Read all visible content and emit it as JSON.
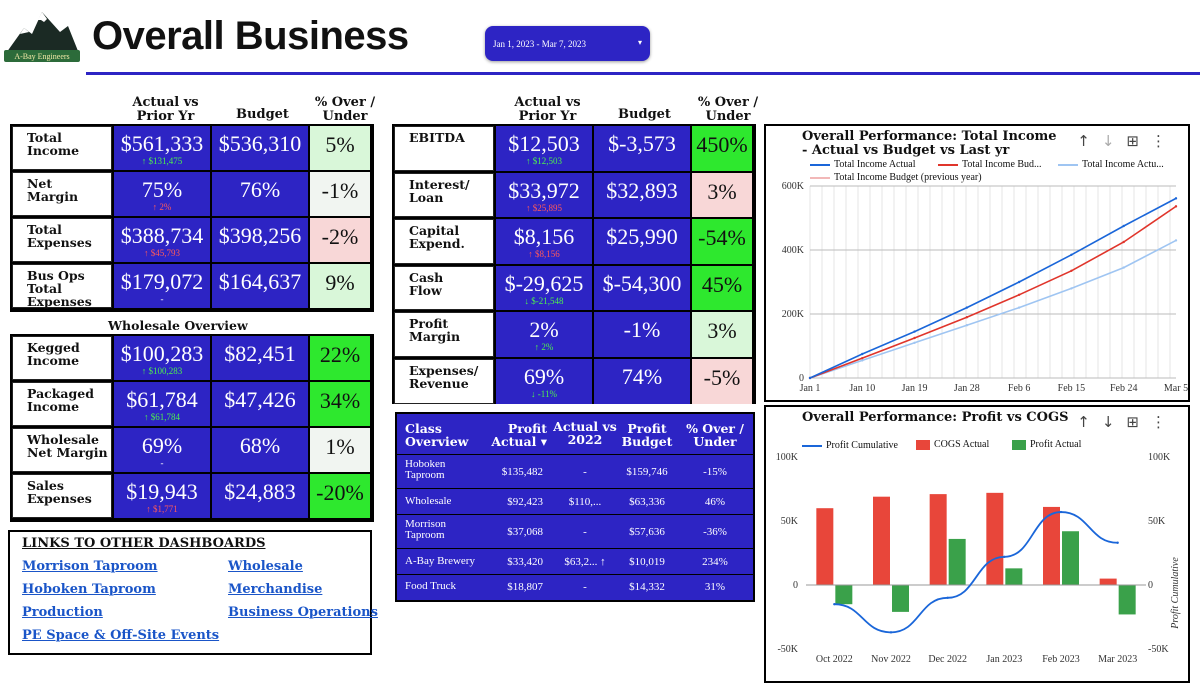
{
  "header": {
    "logo_text": "A-Bay Engineers",
    "title": "Overall Business",
    "date_range": "Jan 1, 2023 - Mar 7, 2023"
  },
  "left_cols": {
    "c1": "Actual vs\nPrior Yr",
    "c2": "Budget",
    "c3": "% Over /\nUnder"
  },
  "mid_cols": {
    "c1": "Actual vs\nPrior Yr",
    "c2": "Budget",
    "c3": "% Over /\nUnder"
  },
  "left_rows": [
    {
      "label": "Total\nIncome",
      "actual": "$561,333",
      "delta": "↑ $131,475",
      "dir": "up",
      "budget": "$536,310",
      "pct": "5%",
      "tone": "pg"
    },
    {
      "label": "Net\nMargin",
      "actual": "75%",
      "delta": "↑ 2%",
      "dir": "down",
      "budget": "76%",
      "pct": "-1%",
      "tone": "pw"
    },
    {
      "label": "Total\nExpenses",
      "actual": "$388,734",
      "delta": "↑ $45,793",
      "dir": "down",
      "budget": "$398,256",
      "pct": "-2%",
      "tone": "pr"
    },
    {
      "label": "Bus Ops\nTotal\nExpenses",
      "actual": "$179,072",
      "delta": "-",
      "dir": "dash",
      "budget": "$164,637",
      "pct": "9%",
      "tone": "pg"
    }
  ],
  "wholesale_title": "Wholesale Overview",
  "wholesale_rows": [
    {
      "label": "Kegged\nIncome",
      "actual": "$100,283",
      "delta": "↑ $100,283",
      "dir": "up",
      "budget": "$82,451",
      "pct": "22%",
      "tone": "pgb"
    },
    {
      "label": "Packaged\nIncome",
      "actual": "$61,784",
      "delta": "↑ $61,784",
      "dir": "up",
      "budget": "$47,426",
      "pct": "34%",
      "tone": "pgb"
    },
    {
      "label": "Wholesale\nNet Margin",
      "actual": "69%",
      "delta": "-",
      "dir": "dash",
      "budget": "68%",
      "pct": "1%",
      "tone": "pw"
    },
    {
      "label": "Sales\nExpenses",
      "actual": "$19,943",
      "delta": "↑ $1,771",
      "dir": "down",
      "budget": "$24,883",
      "pct": "-20%",
      "tone": "pgb"
    }
  ],
  "mid_rows": [
    {
      "label": "EBITDA",
      "actual": "$12,503",
      "delta": "↑ $12,503",
      "dir": "up",
      "budget": "$-3,573",
      "pct": "450%",
      "tone": "pgb"
    },
    {
      "label": "Interest/\nLoan",
      "actual": "$33,972",
      "delta": "↑ $25,895",
      "dir": "down",
      "budget": "$32,893",
      "pct": "3%",
      "tone": "pr"
    },
    {
      "label": "Capital\nExpend.",
      "actual": "$8,156",
      "delta": "↑ $8,156",
      "dir": "down",
      "budget": "$25,990",
      "pct": "-54%",
      "tone": "pgb"
    },
    {
      "label": "Cash\nFlow",
      "actual": "$-29,625",
      "delta": "↓ $-21,548",
      "dir": "up",
      "budget": "$-54,300",
      "pct": "45%",
      "tone": "pgb"
    },
    {
      "label": "Profit\nMargin",
      "actual": "2%",
      "delta": "↑ 2%",
      "dir": "up",
      "budget": "-1%",
      "pct": "3%",
      "tone": "pg"
    },
    {
      "label": "Expenses/\nRevenue",
      "actual": "69%",
      "delta": "↓ -11%",
      "dir": "up",
      "budget": "74%",
      "pct": "-5%",
      "tone": "pr"
    }
  ],
  "links": {
    "title": "LINKS TO OTHER DASHBOARDS",
    "items": [
      "Morrison Taproom",
      "Wholesale",
      "Hoboken Taproom",
      "Merchandise",
      "Production",
      "Business Operations",
      "PE Space & Off-Site Events"
    ]
  },
  "class_overview": {
    "headers": [
      "Class\nOverview",
      "Profit\nActual ▾",
      "Actual vs\n2022",
      "Profit\nBudget",
      "% Over /\nUnder"
    ],
    "rows": [
      {
        "name": "Hoboken\nTaproom",
        "profit": "$135,482",
        "vs2022": "-",
        "budget": "$159,746",
        "pct": "-15%"
      },
      {
        "name": "Wholesale",
        "profit": "$92,423",
        "vs2022": "$110,...",
        "budget": "$63,336",
        "pct": "46%"
      },
      {
        "name": "Morrison\nTaproom",
        "profit": "$37,068",
        "vs2022": "-",
        "budget": "$57,636",
        "pct": "-36%"
      },
      {
        "name": "A-Bay Brewery",
        "profit": "$33,420",
        "vs2022": "$63,2... ↑",
        "budget": "$10,019",
        "pct": "234%"
      },
      {
        "name": "Food Truck",
        "profit": "$18,807",
        "vs2022": "-",
        "budget": "$14,332",
        "pct": "31%"
      }
    ]
  },
  "chart_data": [
    {
      "type": "line",
      "title": "Overall Performance: Total Income\n- Actual vs Budget vs Last yr",
      "x": [
        "Jan 1",
        "Jan 10",
        "Jan 19",
        "Jan 28",
        "Feb 6",
        "Feb 15",
        "Feb 24",
        "Mar 5"
      ],
      "ylim": [
        0,
        600000
      ],
      "yticks": [
        "0",
        "200K",
        "400K",
        "600K"
      ],
      "grid": true,
      "legend_position": "top",
      "series": [
        {
          "name": "Total Income Actual",
          "color": "#1a66d9",
          "values": [
            0,
            75000,
            145000,
            220000,
            300000,
            385000,
            475000,
            561333
          ]
        },
        {
          "name": "Total Income Bud...",
          "color": "#e0352b",
          "values": [
            0,
            62000,
            125000,
            190000,
            260000,
            335000,
            425000,
            536310
          ]
        },
        {
          "name": "Total Income Actu...",
          "color": "#9fc5f2",
          "values": [
            0,
            55000,
            110000,
            165000,
            220000,
            280000,
            345000,
            430000
          ]
        },
        {
          "name": "Total Income Budget (previous year)",
          "color": "#f2b8b8",
          "values": [
            0,
            0,
            0,
            0,
            0,
            0,
            0,
            0
          ]
        }
      ]
    },
    {
      "type": "bar",
      "title": "Overall Performance: Profit vs COGS",
      "categories": [
        "Oct 2022",
        "Nov 2022",
        "Dec 2022",
        "Jan 2023",
        "Feb 2023",
        "Mar 2023"
      ],
      "ylim": [
        -50000,
        100000
      ],
      "yticks": [
        "-50K",
        "0",
        "50K",
        "100K"
      ],
      "y2label": "Profit Cumulative",
      "legend_position": "top",
      "series": [
        {
          "name": "Profit Cumulative",
          "color": "#1a66d9",
          "type": "line",
          "values": [
            -15000,
            -37000,
            -10000,
            22000,
            57000,
            33000
          ]
        },
        {
          "name": "COGS Actual",
          "color": "#e8463a",
          "values": [
            60000,
            69000,
            71000,
            72000,
            61000,
            5000
          ]
        },
        {
          "name": "Profit Actual",
          "color": "#3aa14a",
          "values": [
            -15000,
            -21000,
            36000,
            13000,
            42000,
            -23000
          ]
        }
      ]
    }
  ]
}
